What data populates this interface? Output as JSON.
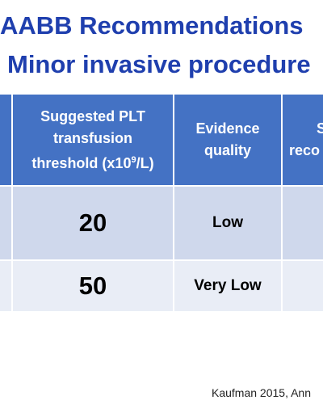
{
  "slide": {
    "title_line1": "AABB Recommendations",
    "title_line2": "Minor invasive procedure",
    "citation": "Kaufman 2015, Ann"
  },
  "table": {
    "headers": [
      {
        "key": "col0",
        "label": ""
      },
      {
        "key": "threshold",
        "label_parts": [
          "Suggested PLT",
          "transfusion",
          "threshold (x10",
          "9",
          "/L)"
        ]
      },
      {
        "key": "evidence",
        "label_parts": [
          "Evidence",
          "quality"
        ]
      },
      {
        "key": "strength",
        "label_parts": [
          "St",
          "reco"
        ]
      }
    ],
    "rows": [
      {
        "threshold": "20",
        "evidence": "Low"
      },
      {
        "threshold": "50",
        "evidence": "Very Low"
      }
    ]
  },
  "colors": {
    "title": "#1f3fae",
    "header_bg": "#4472c4",
    "row1_bg": "#cfd8ec",
    "row2_bg": "#e9edf6"
  }
}
